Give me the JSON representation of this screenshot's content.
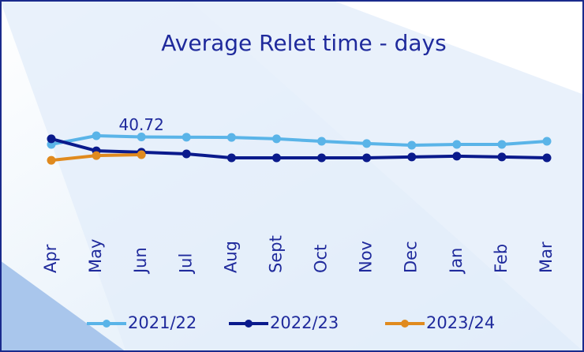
{
  "chart_data": {
    "type": "line",
    "title": "Average Relet time - days",
    "categories": [
      "Apr",
      "May",
      "Jun",
      "Jul",
      "Aug",
      "Sept",
      "Oct",
      "Nov",
      "Dec",
      "Jan",
      "Feb",
      "Mar"
    ],
    "ylim": [
      0,
      65
    ],
    "legend": "bottom",
    "series": [
      {
        "name": "2021/22",
        "color": "#5ab4e8",
        "values": [
          37.1,
          41.3,
          40.72,
          40.6,
          40.5,
          39.8,
          38.6,
          37.5,
          36.7,
          37.1,
          37.1,
          38.6
        ],
        "value_labels": [
          null,
          null,
          "40.72",
          null,
          null,
          null,
          null,
          null,
          null,
          null,
          null,
          null
        ]
      },
      {
        "name": "2022/23",
        "color": "#0a1a8c",
        "values": [
          39.8,
          34.0,
          33.3,
          32.5,
          30.6,
          30.6,
          30.6,
          30.6,
          31.0,
          31.4,
          31.0,
          30.6
        ]
      },
      {
        "name": "2023/24",
        "color": "#e08a1e",
        "values": [
          29.4,
          31.7,
          32.1,
          null,
          null,
          null,
          null,
          null,
          null,
          null,
          null,
          null
        ]
      }
    ]
  }
}
